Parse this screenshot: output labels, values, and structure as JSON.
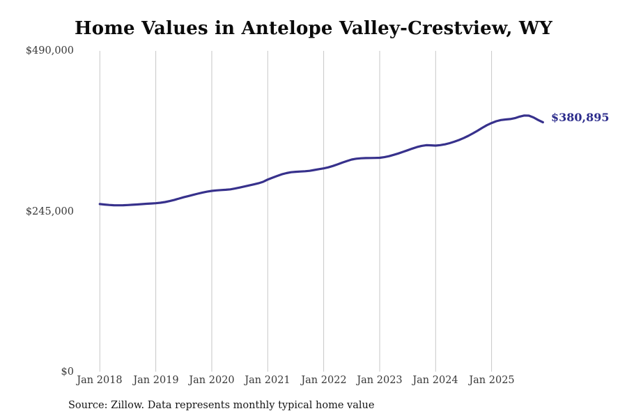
{
  "title": "Home Values in Antelope Valley-Crestview, WY",
  "source_note": "Source: Zillow. Data represents monthly typical home value",
  "end_value_label": "$380,895",
  "colors": {
    "line": "#37318c",
    "end_label": "#2c2c8c",
    "gridline": "#c6c6c6",
    "title_text": "#0b0b0b",
    "axis_text": "#383838"
  },
  "chart_data": {
    "type": "line",
    "title": "Home Values in Antelope Valley-Crestview, WY",
    "xlabel": "",
    "ylabel": "",
    "ylim": [
      0,
      490000
    ],
    "y_ticks": [
      0,
      245000,
      490000
    ],
    "y_tick_labels": [
      "$0",
      "$245,000",
      "$490,000"
    ],
    "x_tick_labels": [
      "Jan 2018",
      "Jan 2019",
      "Jan 2020",
      "Jan 2021",
      "Jan 2022",
      "Jan 2023",
      "Jan 2024",
      "Jan 2025"
    ],
    "grid": "vertical-only",
    "legend": false,
    "last_point_annotation": "$380,895",
    "categories": [
      "2018-01",
      "2018-02",
      "2018-03",
      "2018-04",
      "2018-05",
      "2018-06",
      "2018-07",
      "2018-08",
      "2018-09",
      "2018-10",
      "2018-11",
      "2018-12",
      "2019-01",
      "2019-02",
      "2019-03",
      "2019-04",
      "2019-05",
      "2019-06",
      "2019-07",
      "2019-08",
      "2019-09",
      "2019-10",
      "2019-11",
      "2019-12",
      "2020-01",
      "2020-02",
      "2020-03",
      "2020-04",
      "2020-05",
      "2020-06",
      "2020-07",
      "2020-08",
      "2020-09",
      "2020-10",
      "2020-11",
      "2020-12",
      "2021-01",
      "2021-02",
      "2021-03",
      "2021-04",
      "2021-05",
      "2021-06",
      "2021-07",
      "2021-08",
      "2021-09",
      "2021-10",
      "2021-11",
      "2021-12",
      "2022-01",
      "2022-02",
      "2022-03",
      "2022-04",
      "2022-05",
      "2022-06",
      "2022-07",
      "2022-08",
      "2022-09",
      "2022-10",
      "2022-11",
      "2022-12",
      "2023-01",
      "2023-02",
      "2023-03",
      "2023-04",
      "2023-05",
      "2023-06",
      "2023-07",
      "2023-08",
      "2023-09",
      "2023-10",
      "2023-11",
      "2023-12",
      "2024-01",
      "2024-02",
      "2024-03",
      "2024-04",
      "2024-05",
      "2024-06",
      "2024-07",
      "2024-08",
      "2024-09",
      "2024-10",
      "2024-11",
      "2024-12",
      "2025-01",
      "2025-02",
      "2025-03",
      "2025-04",
      "2025-05",
      "2025-06",
      "2025-07",
      "2025-08",
      "2025-09",
      "2025-10",
      "2025-11",
      "2025-12"
    ],
    "series": [
      {
        "name": "Typical home value",
        "values": [
          256000,
          255300,
          254600,
          254200,
          254100,
          254200,
          254500,
          254900,
          255400,
          255900,
          256400,
          256900,
          257300,
          258000,
          259100,
          260600,
          262400,
          264400,
          266400,
          268300,
          270100,
          271900,
          273600,
          275000,
          276100,
          276900,
          277400,
          277800,
          278500,
          279700,
          281200,
          282800,
          284400,
          286000,
          287700,
          290000,
          293500,
          296200,
          298900,
          301400,
          303300,
          304600,
          305300,
          305700,
          306100,
          306800,
          308000,
          309300,
          310500,
          312100,
          314200,
          316700,
          319300,
          321800,
          324000,
          325300,
          325900,
          326200,
          326400,
          326500,
          326700,
          327600,
          329100,
          331100,
          333300,
          335700,
          338200,
          340700,
          343100,
          344900,
          345900,
          345700,
          345300,
          346000,
          347200,
          349000,
          351200,
          353800,
          356800,
          360200,
          364000,
          368100,
          372400,
          376500,
          379800,
          382500,
          384300,
          385200,
          385800,
          387200,
          389500,
          391300,
          391000,
          388300,
          384300,
          380895
        ]
      }
    ]
  }
}
